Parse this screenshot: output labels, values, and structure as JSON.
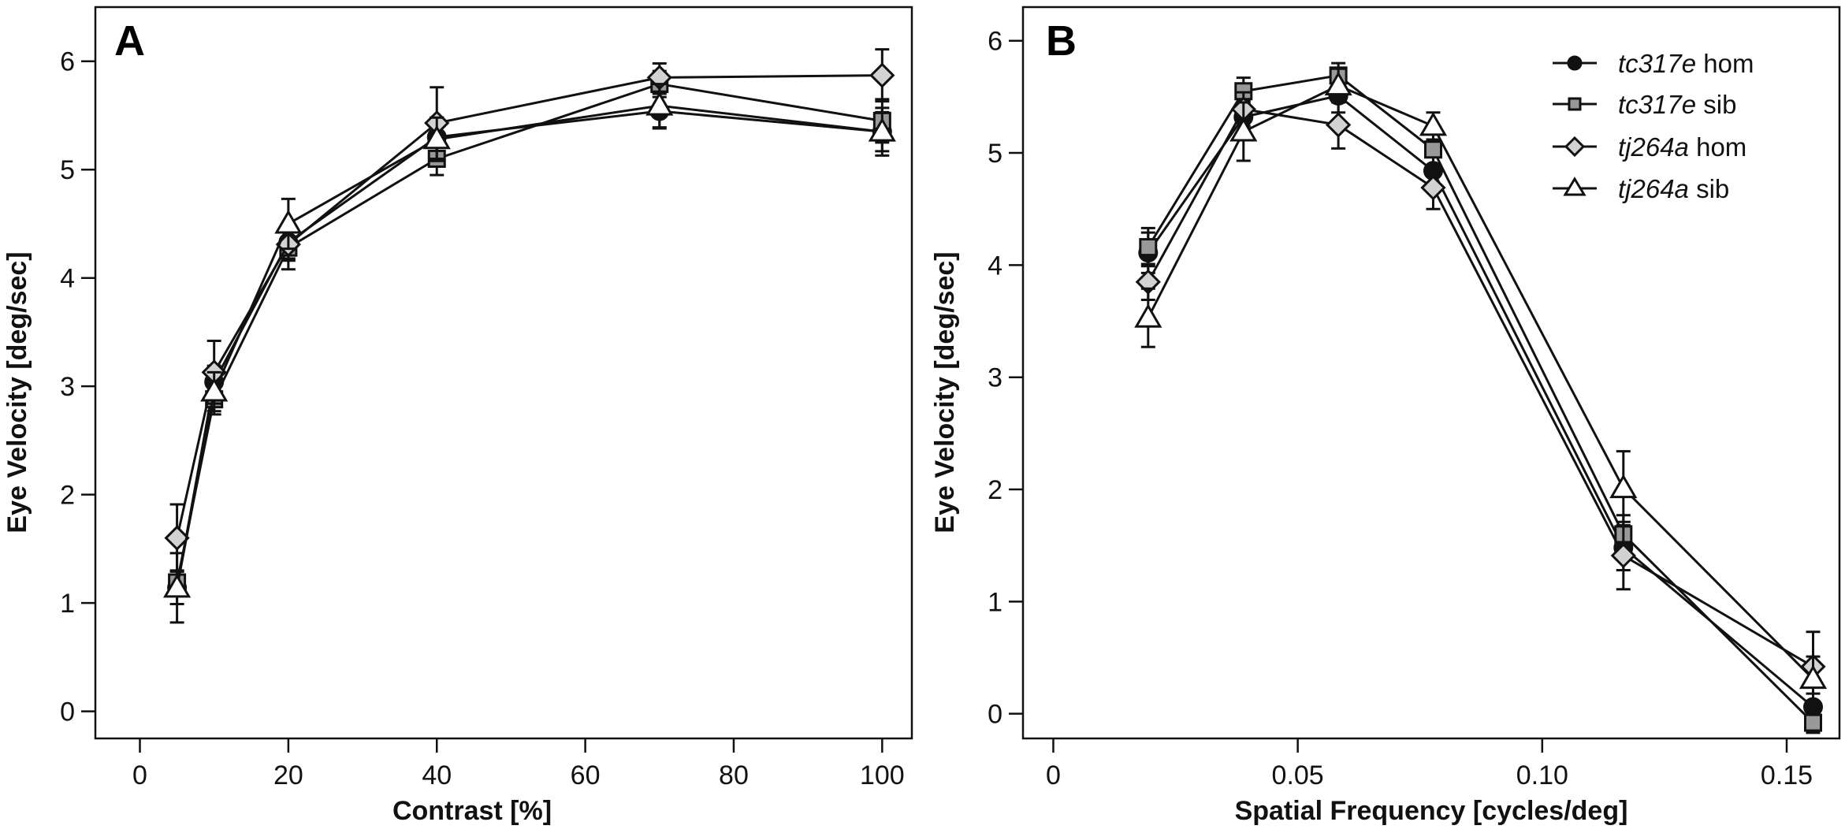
{
  "colors": {
    "line": "#111111",
    "tc317e_hom_fill": "#111111",
    "tc317e_sib_fill": "#999999",
    "tj264a_hom_fill": "#d2d2d2",
    "tj264a_sib_fill": "#ffffff"
  },
  "legend": {
    "placement": "top-right of panel B",
    "entries": [
      {
        "genotype": "tc317e",
        "status": "hom",
        "marker": "circle"
      },
      {
        "genotype": "tc317e",
        "status": "sib",
        "marker": "square"
      },
      {
        "genotype": "tj264a",
        "status": "hom",
        "marker": "diamond"
      },
      {
        "genotype": "tj264a",
        "status": "sib",
        "marker": "triangle"
      }
    ]
  },
  "chart_data": [
    {
      "panel": "A",
      "type": "line",
      "title": "",
      "xlabel": "Contrast [%]",
      "ylabel": "Eye Velocity [deg/sec]",
      "xlim": [
        -6,
        104
      ],
      "ylim": [
        -0.25,
        6.5
      ],
      "xticks": [
        0,
        20,
        40,
        60,
        80,
        100
      ],
      "xtick_labels": [
        "0",
        "20",
        "40",
        "60",
        "80",
        "100"
      ],
      "yticks": [
        0,
        1,
        2,
        3,
        4,
        5,
        6
      ],
      "ytick_labels": [
        "0",
        "1",
        "2",
        "3",
        "4",
        "5",
        "6"
      ],
      "grid": false,
      "x": [
        5,
        10,
        20,
        40,
        70,
        100
      ],
      "series": [
        {
          "name": "tc317e hom",
          "marker": "circle",
          "values": [
            1.14,
            3.04,
            4.33,
            5.3,
            5.54,
            5.35
          ],
          "errors": [
            0.15,
            0.15,
            0.15,
            0.18,
            0.16,
            0.18
          ]
        },
        {
          "name": "tc317e sib",
          "marker": "square",
          "values": [
            1.19,
            2.88,
            4.28,
            5.1,
            5.79,
            5.45
          ],
          "errors": [
            0.11,
            0.14,
            0.2,
            0.15,
            0.12,
            0.2
          ]
        },
        {
          "name": "tj264a hom",
          "marker": "diamond",
          "values": [
            1.6,
            3.13,
            4.31,
            5.43,
            5.85,
            5.87
          ],
          "errors": [
            0.31,
            0.29,
            0.15,
            0.33,
            0.13,
            0.24
          ]
        },
        {
          "name": "tj264a sib",
          "marker": "triangle",
          "values": [
            1.14,
            2.95,
            4.5,
            5.28,
            5.59,
            5.35
          ],
          "errors": [
            0.32,
            0.18,
            0.23,
            0.2,
            0.2,
            0.22
          ]
        }
      ]
    },
    {
      "panel": "B",
      "type": "line",
      "title": "",
      "xlabel": "Spatial Frequency [cycles/deg]",
      "ylabel": "Eye Velocity [deg/sec]",
      "xlim": [
        -0.0062,
        0.1608
      ],
      "ylim": [
        -0.22,
        6.3
      ],
      "xticks": [
        0,
        0.05,
        0.1,
        0.15
      ],
      "xtick_labels": [
        "0",
        "0.05",
        "0.10",
        "0.15"
      ],
      "yticks": [
        0,
        1,
        2,
        3,
        4,
        5,
        6
      ],
      "ytick_labels": [
        "0",
        "1",
        "2",
        "3",
        "4",
        "5",
        "6"
      ],
      "grid": false,
      "x": [
        0.0194,
        0.0389,
        0.0583,
        0.0777,
        0.1166,
        0.1554
      ],
      "series": [
        {
          "name": "tc317e hom",
          "marker": "circle",
          "values": [
            4.11,
            5.32,
            5.51,
            4.84,
            1.48,
            0.06
          ],
          "errors": [
            0.18,
            0.15,
            0.15,
            0.17,
            0.2,
            0.12
          ]
        },
        {
          "name": "tc317e sib",
          "marker": "square",
          "values": [
            4.16,
            5.55,
            5.69,
            5.03,
            1.6,
            -0.08
          ],
          "errors": [
            0.17,
            0.12,
            0.11,
            0.15,
            0.17,
            0.09
          ]
        },
        {
          "name": "tj264a hom",
          "marker": "diamond",
          "values": [
            3.85,
            5.39,
            5.25,
            4.69,
            1.41,
            0.42
          ],
          "errors": [
            0.16,
            0.15,
            0.21,
            0.19,
            0.3,
            0.31
          ]
        },
        {
          "name": "tj264a sib",
          "marker": "triangle",
          "values": [
            3.53,
            5.19,
            5.6,
            5.24,
            2.01,
            0.31
          ],
          "errors": [
            0.26,
            0.26,
            0.15,
            0.12,
            0.33,
            0.2
          ]
        }
      ]
    }
  ],
  "panels": {
    "A": {
      "label": "A"
    },
    "B": {
      "label": "B"
    }
  }
}
